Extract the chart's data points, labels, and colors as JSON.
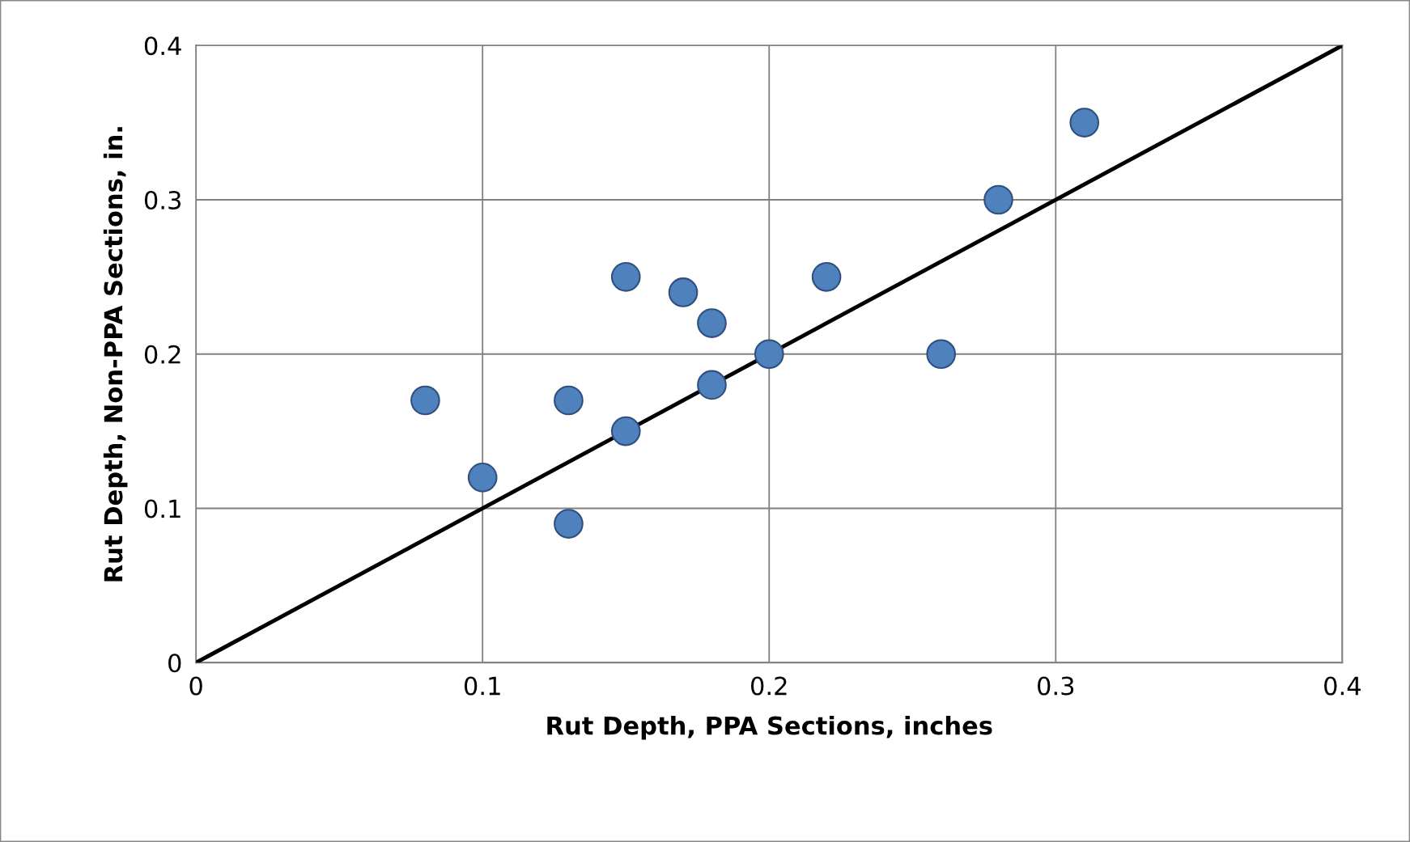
{
  "chart_data": {
    "type": "scatter",
    "xlabel": "Rut Depth, PPA Sections, inches",
    "ylabel": "Rut Depth, Non-PPA Sections, in.",
    "series": [
      {
        "color": "#4f81bd",
        "marker": "circle",
        "x": [
          0.08,
          0.1,
          0.13,
          0.13,
          0.15,
          0.15,
          0.17,
          0.18,
          0.18,
          0.2,
          0.22,
          0.26,
          0.28,
          0.31
        ],
        "values": [
          0.17,
          0.12,
          0.17,
          0.09,
          0.25,
          0.15,
          0.24,
          0.22,
          0.18,
          0.2,
          0.25,
          0.2,
          0.3,
          0.35
        ]
      },
      {
        "type": "line",
        "color": "#000000",
        "marker": "none",
        "line_style": "solid",
        "x": [
          0,
          0.4
        ],
        "values": [
          0,
          0.4
        ]
      }
    ],
    "xlim": [
      0,
      0.4
    ],
    "ylim": [
      0,
      0.4
    ],
    "xticks": [
      0,
      0.1,
      0.2,
      0.3,
      0.4
    ],
    "yticks": [
      0,
      0.1,
      0.2,
      0.3,
      0.4
    ],
    "grid": true
  }
}
